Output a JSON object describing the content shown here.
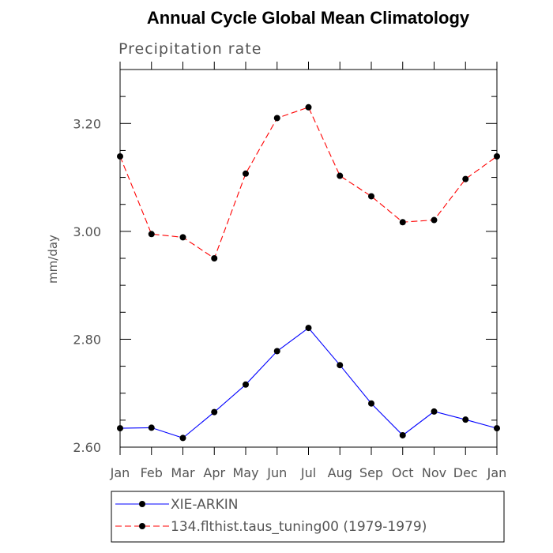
{
  "chart_data": {
    "type": "line",
    "title": "Annual Cycle Global Mean Climatology",
    "subtitle": "Precipitation rate",
    "xlabel": "",
    "ylabel": "mm/day",
    "categories": [
      "Jan",
      "Feb",
      "Mar",
      "Apr",
      "May",
      "Jun",
      "Jul",
      "Aug",
      "Sep",
      "Oct",
      "Nov",
      "Dec",
      "Jan"
    ],
    "ylim": [
      2.6,
      3.3
    ],
    "yticks": [
      2.6,
      2.8,
      3.0,
      3.2
    ],
    "ytick_labels": [
      "2.60",
      "2.80",
      "3.00",
      "3.20"
    ],
    "grid": false,
    "legend_position": "bottom",
    "series": [
      {
        "name": "XIE-ARKIN",
        "color": "#0000ff",
        "dash": "solid",
        "values": [
          2.635,
          2.636,
          2.617,
          2.665,
          2.716,
          2.778,
          2.821,
          2.752,
          2.681,
          2.622,
          2.666,
          2.651,
          2.635
        ]
      },
      {
        "name": "134.flthist.taus_tuning00 (1979-1979)",
        "color": "#ff0000",
        "dash": "dashed",
        "values": [
          3.139,
          2.995,
          2.989,
          2.95,
          3.107,
          3.21,
          3.23,
          3.103,
          3.065,
          3.017,
          3.021,
          3.097,
          3.139
        ]
      }
    ]
  }
}
